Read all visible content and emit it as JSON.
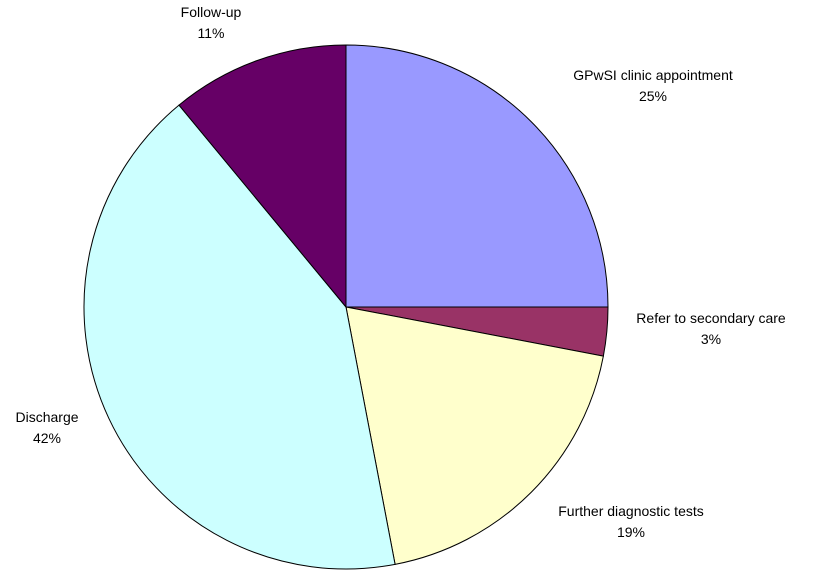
{
  "chart_data": {
    "type": "pie",
    "categories": [
      "GPwSI clinic appointment",
      "Refer to secondary care",
      "Further diagnostic tests",
      "Discharge",
      "Follow-up"
    ],
    "values": [
      25,
      3,
      19,
      42,
      11
    ],
    "value_labels": [
      "25%",
      "3%",
      "19%",
      "42%",
      "11%"
    ],
    "colors": [
      "#9999ff",
      "#993366",
      "#ffffcc",
      "#ccffff",
      "#660066"
    ]
  }
}
